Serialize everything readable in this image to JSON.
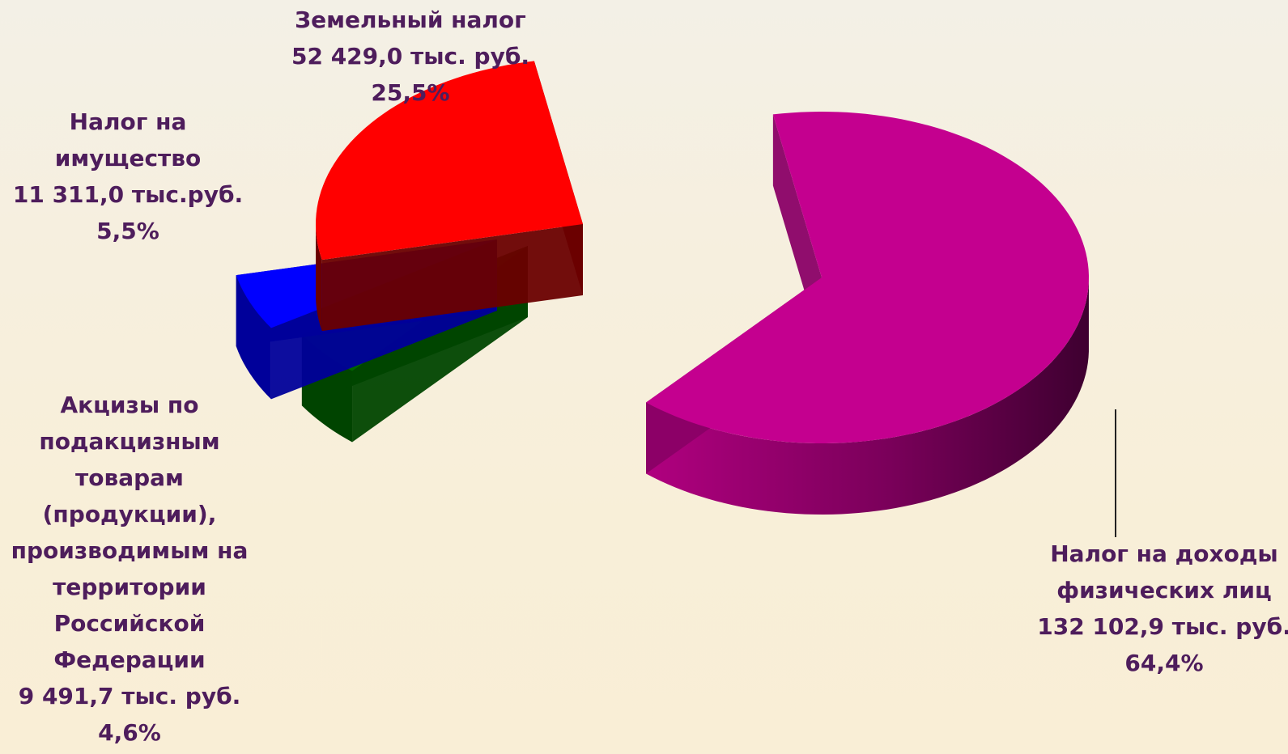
{
  "chart_data": {
    "type": "pie",
    "style": "3d-exploded",
    "title": "",
    "legend": "none",
    "slices": [
      {
        "name": "Налог на доходы физических лиц",
        "label_lines": [
          "Налог на доходы",
          "физических лиц",
          "132 102,9 тыс. руб.",
          "64,4%"
        ],
        "value": 132102.9,
        "percent": 64.4,
        "color": "#c4008f",
        "side_color": "#8a0066"
      },
      {
        "name": "Акцизы по подакцизным товарам (продукции), производимым на территории Российской Федерации",
        "label_lines": [
          "Акцизы по",
          "подакцизным",
          "товарам",
          "(продукции),",
          "производимым на",
          "территории",
          "Российской",
          "Федерации",
          "9 491,7 тыс. руб.",
          "4,6%"
        ],
        "value": 9491.7,
        "percent": 4.6,
        "color": "#006400",
        "side_color": "#004400"
      },
      {
        "name": "Налог на имущество",
        "label_lines": [
          "Налог на",
          "имущество",
          "11 311,0 тыс.руб.",
          "5,5%"
        ],
        "value": 11311.0,
        "percent": 5.5,
        "color": "#0000ff",
        "side_color": "#00009a"
      },
      {
        "name": "Земельный налог",
        "label_lines": [
          "Земельный налог",
          "52 429,0  тыс. руб.",
          "25,5%"
        ],
        "value": 52429.0,
        "percent": 25.5,
        "color": "#ff0000",
        "side_color": "#6a0000"
      }
    ]
  }
}
